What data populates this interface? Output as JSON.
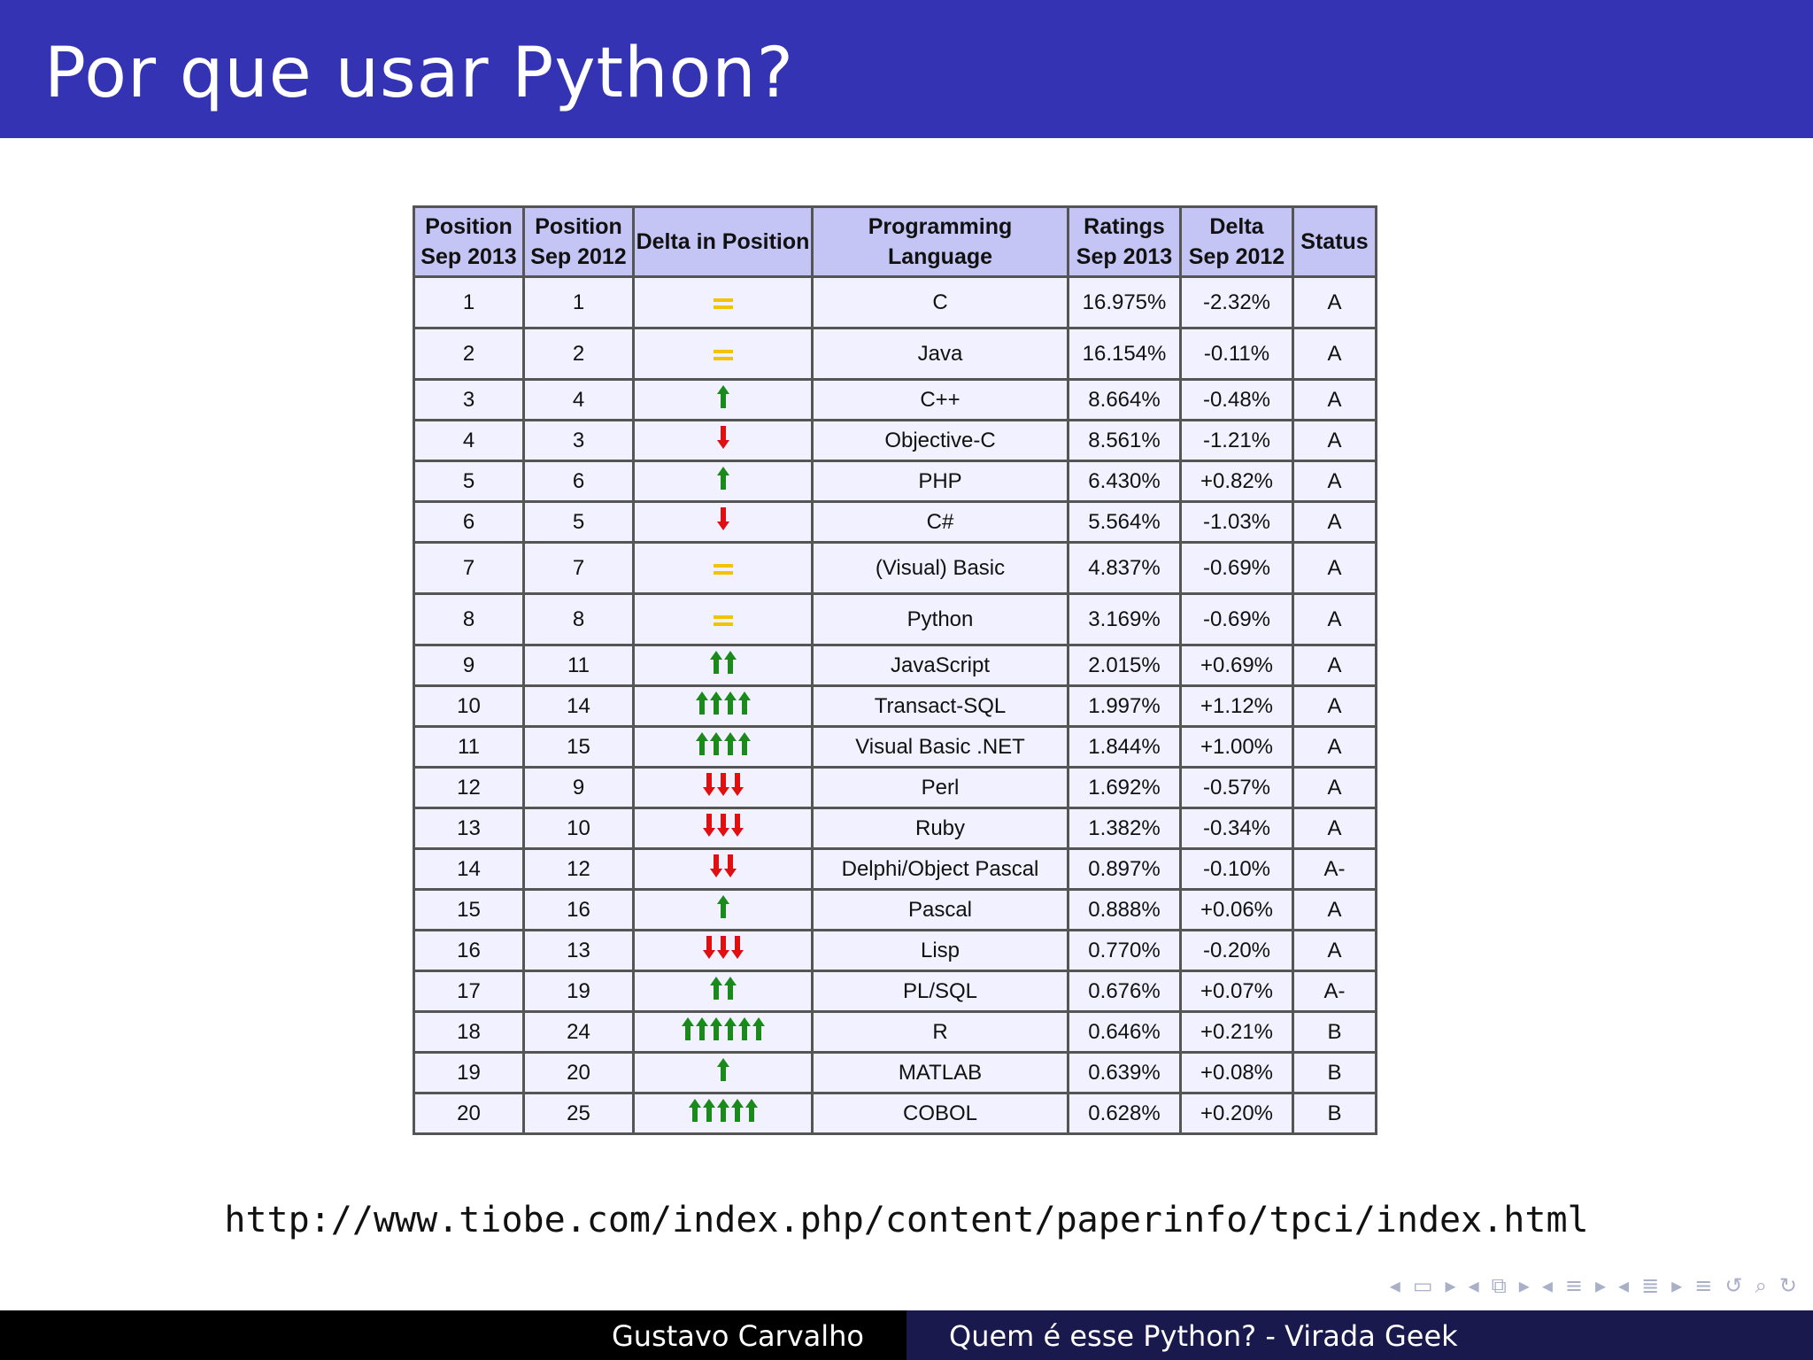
{
  "slide": {
    "title": "Por que usar Python?",
    "url": "http://www.tiobe.com/index.php/content/paperinfo/tpci/index.html",
    "footer_author": "Gustavo Carvalho",
    "footer_talk": "Quem é esse Python? - Virada Geek"
  },
  "table": {
    "headers": {
      "pos2013_a": "Position",
      "pos2013_b": "Sep 2013",
      "pos2012_a": "Position",
      "pos2012_b": "Sep 2012",
      "delta_pos": "Delta in Position",
      "language": "Programming Language",
      "ratings_a": "Ratings",
      "ratings_b": "Sep 2013",
      "delta_a": "Delta",
      "delta_b": "Sep 2012",
      "status": "Status"
    },
    "rows": [
      {
        "pos2013": "1",
        "pos2012": "1",
        "change": "equal",
        "count": 0,
        "language": "C",
        "rating": "16.975%",
        "delta": "-2.32%",
        "status": "A",
        "tall": true
      },
      {
        "pos2013": "2",
        "pos2012": "2",
        "change": "equal",
        "count": 0,
        "language": "Java",
        "rating": "16.154%",
        "delta": "-0.11%",
        "status": "A",
        "tall": true
      },
      {
        "pos2013": "3",
        "pos2012": "4",
        "change": "up",
        "count": 1,
        "language": "C++",
        "rating": "8.664%",
        "delta": "-0.48%",
        "status": "A"
      },
      {
        "pos2013": "4",
        "pos2012": "3",
        "change": "down",
        "count": 1,
        "language": "Objective-C",
        "rating": "8.561%",
        "delta": "-1.21%",
        "status": "A"
      },
      {
        "pos2013": "5",
        "pos2012": "6",
        "change": "up",
        "count": 1,
        "language": "PHP",
        "rating": "6.430%",
        "delta": "+0.82%",
        "status": "A"
      },
      {
        "pos2013": "6",
        "pos2012": "5",
        "change": "down",
        "count": 1,
        "language": "C#",
        "rating": "5.564%",
        "delta": "-1.03%",
        "status": "A"
      },
      {
        "pos2013": "7",
        "pos2012": "7",
        "change": "equal",
        "count": 0,
        "language": "(Visual) Basic",
        "rating": "4.837%",
        "delta": "-0.69%",
        "status": "A",
        "tall": true
      },
      {
        "pos2013": "8",
        "pos2012": "8",
        "change": "equal",
        "count": 0,
        "language": "Python",
        "rating": "3.169%",
        "delta": "-0.69%",
        "status": "A",
        "tall": true
      },
      {
        "pos2013": "9",
        "pos2012": "11",
        "change": "up",
        "count": 2,
        "language": "JavaScript",
        "rating": "2.015%",
        "delta": "+0.69%",
        "status": "A"
      },
      {
        "pos2013": "10",
        "pos2012": "14",
        "change": "up",
        "count": 4,
        "language": "Transact-SQL",
        "rating": "1.997%",
        "delta": "+1.12%",
        "status": "A"
      },
      {
        "pos2013": "11",
        "pos2012": "15",
        "change": "up",
        "count": 4,
        "language": "Visual Basic .NET",
        "rating": "1.844%",
        "delta": "+1.00%",
        "status": "A"
      },
      {
        "pos2013": "12",
        "pos2012": "9",
        "change": "down",
        "count": 3,
        "language": "Perl",
        "rating": "1.692%",
        "delta": "-0.57%",
        "status": "A"
      },
      {
        "pos2013": "13",
        "pos2012": "10",
        "change": "down",
        "count": 3,
        "language": "Ruby",
        "rating": "1.382%",
        "delta": "-0.34%",
        "status": "A"
      },
      {
        "pos2013": "14",
        "pos2012": "12",
        "change": "down",
        "count": 2,
        "language": "Delphi/Object Pascal",
        "rating": "0.897%",
        "delta": "-0.10%",
        "status": "A-"
      },
      {
        "pos2013": "15",
        "pos2012": "16",
        "change": "up",
        "count": 1,
        "language": "Pascal",
        "rating": "0.888%",
        "delta": "+0.06%",
        "status": "A"
      },
      {
        "pos2013": "16",
        "pos2012": "13",
        "change": "down",
        "count": 3,
        "language": "Lisp",
        "rating": "0.770%",
        "delta": "-0.20%",
        "status": "A"
      },
      {
        "pos2013": "17",
        "pos2012": "19",
        "change": "up",
        "count": 2,
        "language": "PL/SQL",
        "rating": "0.676%",
        "delta": "+0.07%",
        "status": "A-"
      },
      {
        "pos2013": "18",
        "pos2012": "24",
        "change": "up",
        "count": 6,
        "language": "R",
        "rating": "0.646%",
        "delta": "+0.21%",
        "status": "B"
      },
      {
        "pos2013": "19",
        "pos2012": "20",
        "change": "up",
        "count": 1,
        "language": "MATLAB",
        "rating": "0.639%",
        "delta": "+0.08%",
        "status": "B"
      },
      {
        "pos2013": "20",
        "pos2012": "25",
        "change": "up",
        "count": 5,
        "language": "COBOL",
        "rating": "0.628%",
        "delta": "+0.20%",
        "status": "B"
      }
    ]
  },
  "colors": {
    "up_arrow": "#1a8a1a",
    "down_arrow": "#e01010",
    "equal_sign": "#f2c300"
  },
  "nav": {
    "icons": [
      "prev-frame-icon",
      "frame-icon",
      "next-frame-icon",
      "prev-subsection-icon",
      "subsection-icon",
      "next-subsection-icon",
      "prev-section-icon",
      "section-icon",
      "next-section-icon",
      "prev-slide-icon",
      "slide-icon",
      "next-slide-icon",
      "align-icon",
      "undo-icon",
      "search-icon",
      "redo-icon"
    ]
  }
}
